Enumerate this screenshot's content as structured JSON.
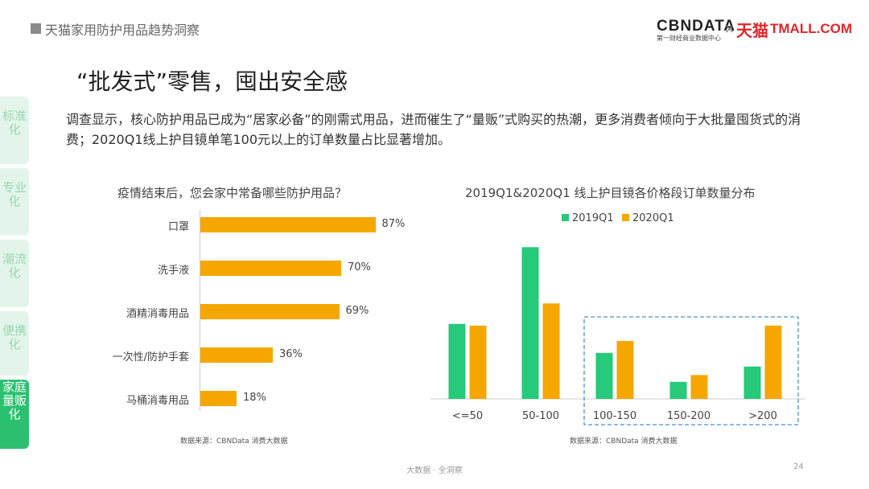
{
  "header": {
    "section_title": "天猫家用防护用品趋势洞察"
  },
  "logos": {
    "cbndata": "CBNDATA",
    "cbndata_sub": "第一财经商业数据中心",
    "times": "×",
    "tmall_cn": "天猫",
    "tmall_en": "TMALL.COM"
  },
  "title": "“批发式”零售，囤出安全感",
  "description": "调查显示，核心防护用品已成为“居家必备”的刚需式用品，进而催生了“量贩”式购买的热潮，更多消费者倾向于大批量囤货式的消费；2020Q1线上护目镜单笔100元以上的订单数量占比显著增加。",
  "sidebar": {
    "items": [
      {
        "label": "标准化",
        "active": false
      },
      {
        "label": "专业化",
        "active": false
      },
      {
        "label": "潮流化",
        "active": false
      },
      {
        "label": "便携化",
        "active": false
      },
      {
        "label": "家庭量贩化",
        "active": true
      }
    ]
  },
  "chart_data": [
    {
      "type": "bar",
      "orientation": "horizontal",
      "title": "疫情结束后，您会家中常备哪些防护用品？",
      "categories": [
        "口罩",
        "洗手液",
        "酒精消毒用品",
        "一次性/防护手套",
        "马桶消毒用品"
      ],
      "values": [
        87,
        70,
        69,
        36,
        18
      ],
      "value_labels": [
        "87%",
        "70%",
        "69%",
        "36%",
        "18%"
      ],
      "color": "#f5a700",
      "source": "数据来源：CBNData 消费大数据"
    },
    {
      "type": "bar",
      "title": "2019Q1&2020Q1 线上护目镜各价格段订单数量分布",
      "categories": [
        "<=50",
        "50-100",
        "100-150",
        "150-200",
        ">200"
      ],
      "series": [
        {
          "name": "2019Q1",
          "color": "#27c97a",
          "values": [
            0.44,
            0.89,
            0.27,
            0.1,
            0.19
          ]
        },
        {
          "name": "2020Q1",
          "color": "#f5a700",
          "values": [
            0.43,
            0.56,
            0.34,
            0.14,
            0.43
          ]
        }
      ],
      "legend": "top",
      "highlight_categories": [
        "100-150",
        "150-200",
        ">200"
      ],
      "source": "数据来源：CBNData 消费大数据"
    }
  ],
  "footer": {
    "text": "大数据 · 全洞察",
    "page": "24"
  }
}
